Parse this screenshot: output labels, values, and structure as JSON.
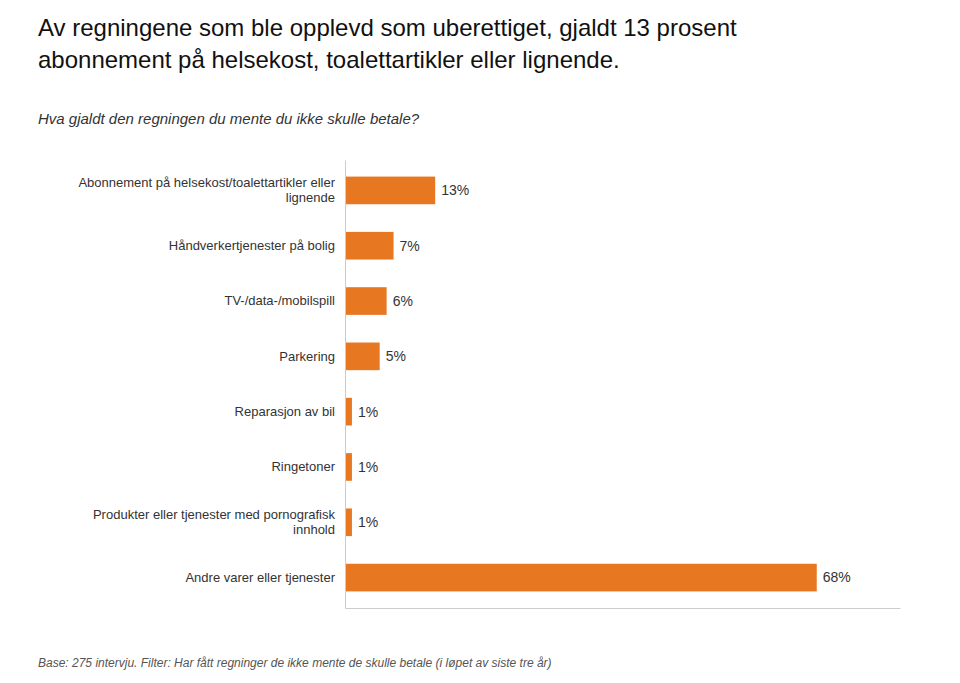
{
  "chart_data": {
    "type": "bar",
    "orientation": "horizontal",
    "title": "Av regningene som ble opplevd som uberettiget, gjaldt 13 prosent\nabonnement på helsekost, toalettartikler eller lignende.",
    "subtitle": "Hva gjaldt den regningen du mente du ikke skulle betale?",
    "annotations": [
      "Base: 275 intervju. Filter: Har fått regninger de ikke mente de skulle betale (i løpet av siste tre år)"
    ],
    "categories": [
      "Abonnement på helsekost/toalettartikler eller\nlignende",
      "Håndverkertjenester på bolig",
      "TV-/data-/mobilspill",
      "Parkering",
      "Reparasjon av bil",
      "Ringetoner",
      "Produkter eller tjenester med pornografisk\ninnhold",
      "Andre varer eller tjenester"
    ],
    "values": [
      13,
      7,
      6,
      5,
      1,
      1,
      1,
      68
    ],
    "value_labels": [
      "13%",
      "7%",
      "6%",
      "5%",
      "1%",
      "1%",
      "1%",
      "68%"
    ],
    "data_labels": true,
    "color": "#E87722",
    "xlim": [
      0,
      80
    ],
    "tick_labels": "y",
    "grid": false
  }
}
